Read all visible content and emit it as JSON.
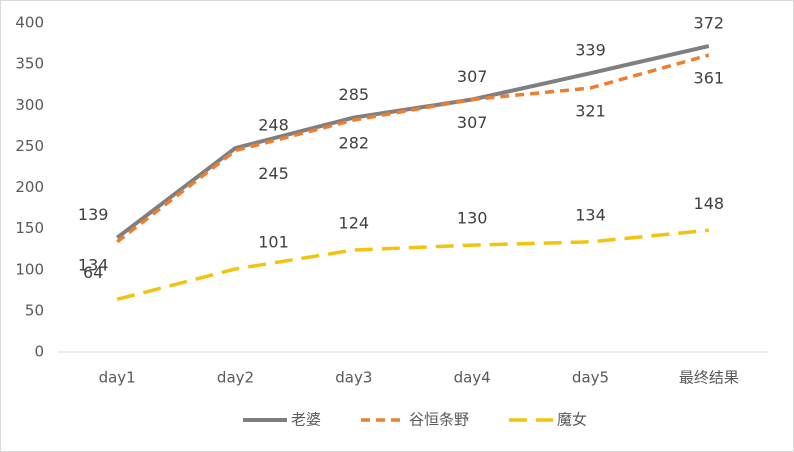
{
  "chart_data": {
    "type": "line",
    "categories": [
      "day1",
      "day2",
      "day3",
      "day4",
      "day5",
      "最终结果"
    ],
    "series": [
      {
        "name": "老婆",
        "color": "#7f7f7f",
        "values": [
          139,
          248,
          285,
          307,
          339,
          372
        ]
      },
      {
        "name": "谷恒条野",
        "color": "#ed7d31",
        "values": [
          134,
          245,
          282,
          307,
          321,
          361
        ]
      },
      {
        "name": "魔女",
        "color": "#f2c40f",
        "values": [
          64,
          101,
          124,
          130,
          134,
          148
        ]
      }
    ],
    "ylim": [
      0,
      400
    ],
    "yticks": [
      0,
      50,
      100,
      150,
      200,
      250,
      300,
      350,
      400
    ],
    "grid": false,
    "legend": "bottom"
  }
}
